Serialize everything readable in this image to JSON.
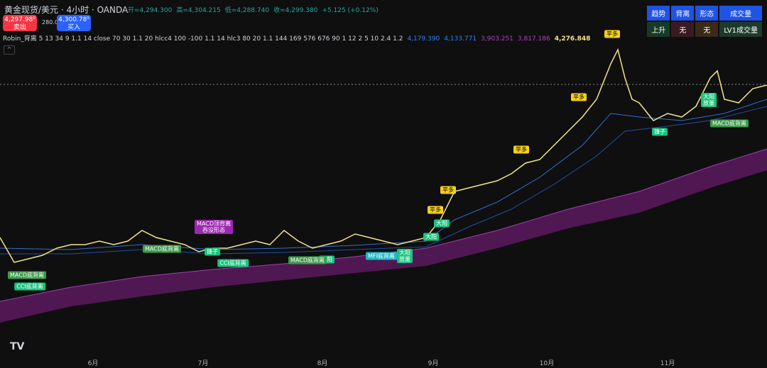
{
  "header": {
    "symbol": "黄金现货/美元 · 4小时 · OANDA",
    "ohlc": [
      "开=4,294.300",
      "高=4,304.215",
      "低=4,288.740",
      "收=4,299.380"
    ],
    "change": "+5.125 (+0.12%)",
    "sell": {
      "price": "4,297.98⁰",
      "label": "卖出"
    },
    "spread": "280.0",
    "buy": {
      "price": "4,300.78⁰",
      "label": "买入"
    }
  },
  "indicator": {
    "name": "Robin_背离 5 13 34 9 1.1 14 close 70 30 1.1 20 hlcc4 100 -100 1.1 14 hlc3 80 20 1.1 144 169 576 676 90 1 12 2 5 10 2.4 1.2",
    "values": [
      "4,179.390",
      "4,133.771",
      "3,903.251",
      "3,817.186",
      "4,276.848"
    ]
  },
  "table": {
    "headers": [
      "趋势",
      "背离",
      "形态",
      "成交量"
    ],
    "row": [
      "上升",
      "无",
      "无",
      "LV1成交量"
    ]
  },
  "annotations": [
    [
      "平多"
    ],
    [
      "平多"
    ],
    [
      "平多"
    ],
    [
      "平多"
    ],
    [
      "平多"
    ],
    [
      "大阳"
    ],
    [
      "大阳"
    ],
    [
      "大阳"
    ],
    [
      "大阳",
      "放量"
    ],
    [
      "大阳",
      "放量"
    ],
    [
      "锤子"
    ],
    [
      "锤子"
    ],
    [
      "MACD底背离"
    ],
    [
      "MACD底背离"
    ],
    [
      "MACD底背离"
    ],
    [
      "MACD底背离"
    ],
    [
      "CCI底背离"
    ],
    [
      "CCI底背离"
    ],
    [
      "MACD顶背离",
      "吞没形态"
    ],
    [
      "MFI底背离"
    ]
  ],
  "x_axis": [
    "6月",
    "7月",
    "8月",
    "9月",
    "10月",
    "11月"
  ]
}
